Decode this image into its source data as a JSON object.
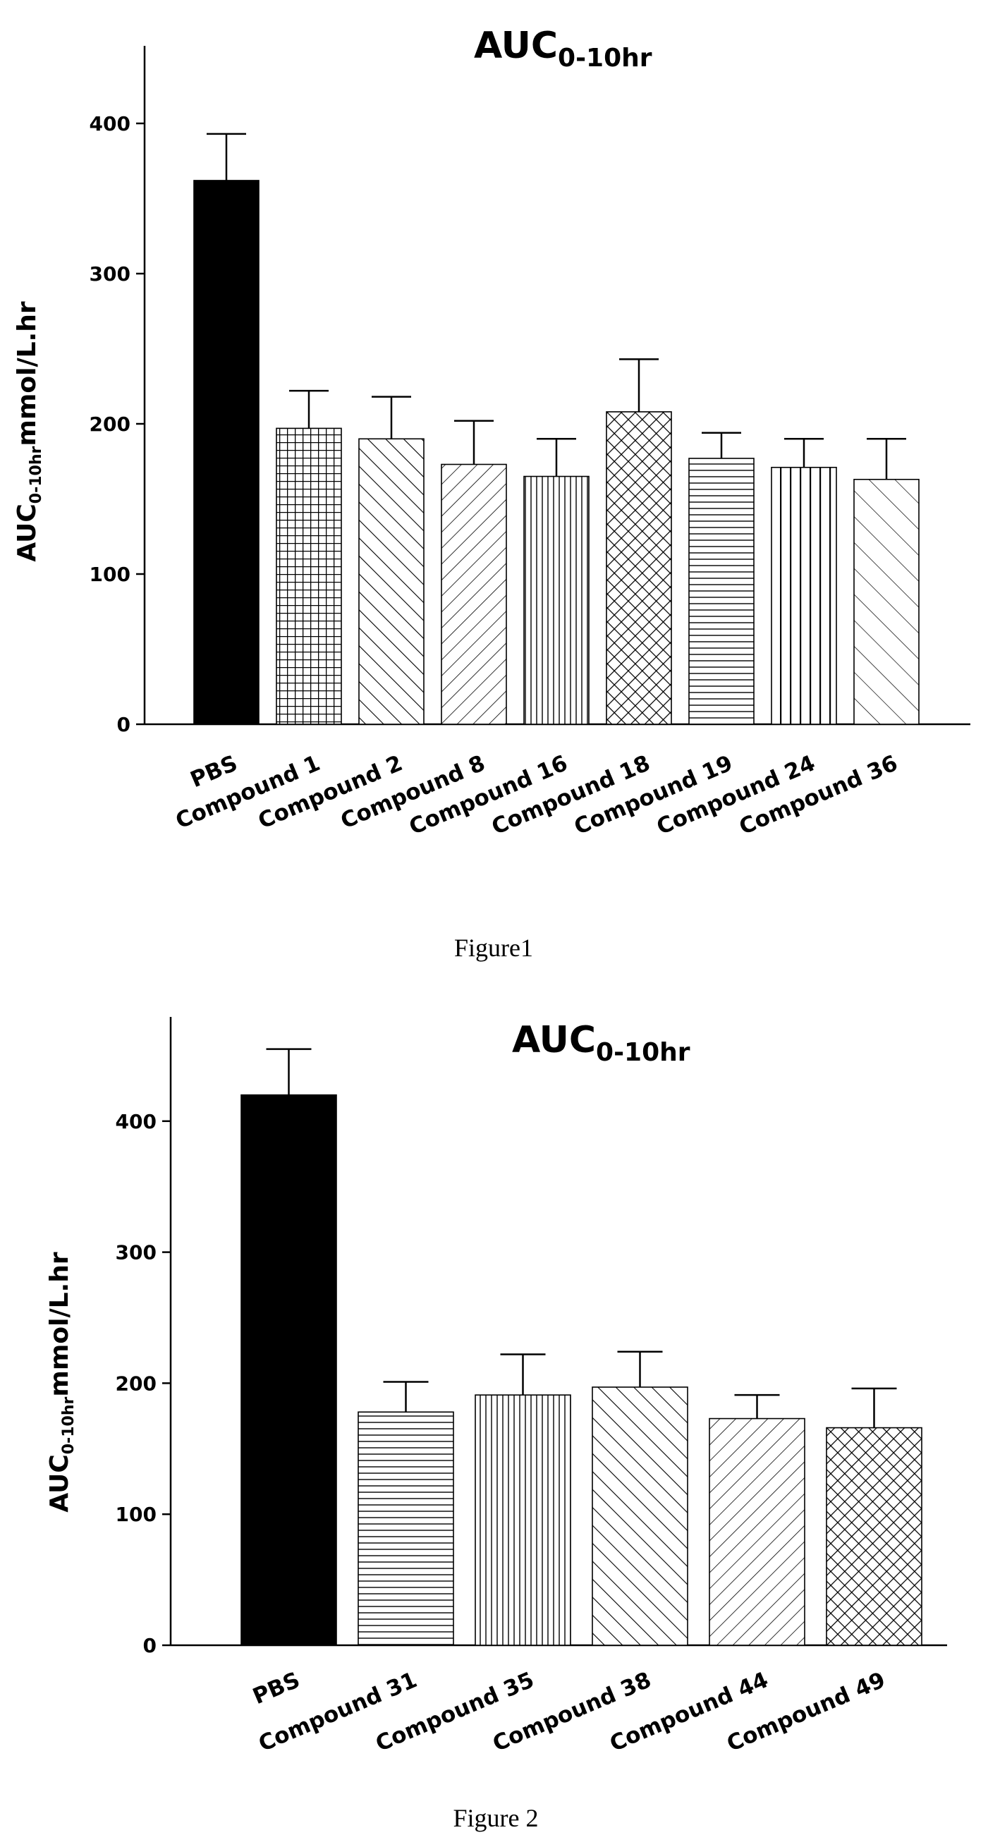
{
  "chart_data": [
    {
      "type": "bar",
      "title": "AUC",
      "title_subscript": "0-10hr",
      "ylabel": "AUC",
      "ylabel_subscript": "0-10hr",
      "ylabel_units": "mmol/L.hr",
      "ylim": [
        0,
        450
      ],
      "yticks": [
        "0",
        "100",
        "200",
        "300",
        "400"
      ],
      "categories": [
        "PBS",
        "Compound 1",
        "Compound 2",
        "Compound  8",
        "Compound  16",
        "Compound  18",
        "Compound  19",
        "Compound  24",
        "Compound  36"
      ],
      "values": [
        362,
        197,
        190,
        173,
        165,
        208,
        177,
        171,
        163
      ],
      "error_upper": [
        393,
        222,
        218,
        202,
        190,
        243,
        194,
        190,
        190
      ],
      "fills": [
        "solid-black",
        "grid",
        "diag-right",
        "diag-left",
        "vertical",
        "crosshatch",
        "horizontal",
        "vertical-wide",
        "diag-right-wide"
      ],
      "caption": "Figure1"
    },
    {
      "type": "bar",
      "title": "AUC",
      "title_subscript": "0-10hr",
      "ylabel": "AUC",
      "ylabel_subscript": "0-10hr",
      "ylabel_units": "mmol/L.hr",
      "ylim": [
        0,
        480
      ],
      "yticks": [
        "0",
        "100",
        "200",
        "300",
        "400"
      ],
      "categories": [
        "PBS",
        "Compound 31",
        "Compound 35",
        "Compound 38",
        "Compound 44",
        "Compound 49"
      ],
      "values": [
        420,
        178,
        191,
        197,
        173,
        166
      ],
      "error_upper": [
        455,
        201,
        222,
        224,
        191,
        196
      ],
      "fills": [
        "solid-black",
        "horizontal",
        "vertical",
        "diag-right",
        "diag-left",
        "crosshatch"
      ],
      "caption": "Figure 2"
    }
  ]
}
